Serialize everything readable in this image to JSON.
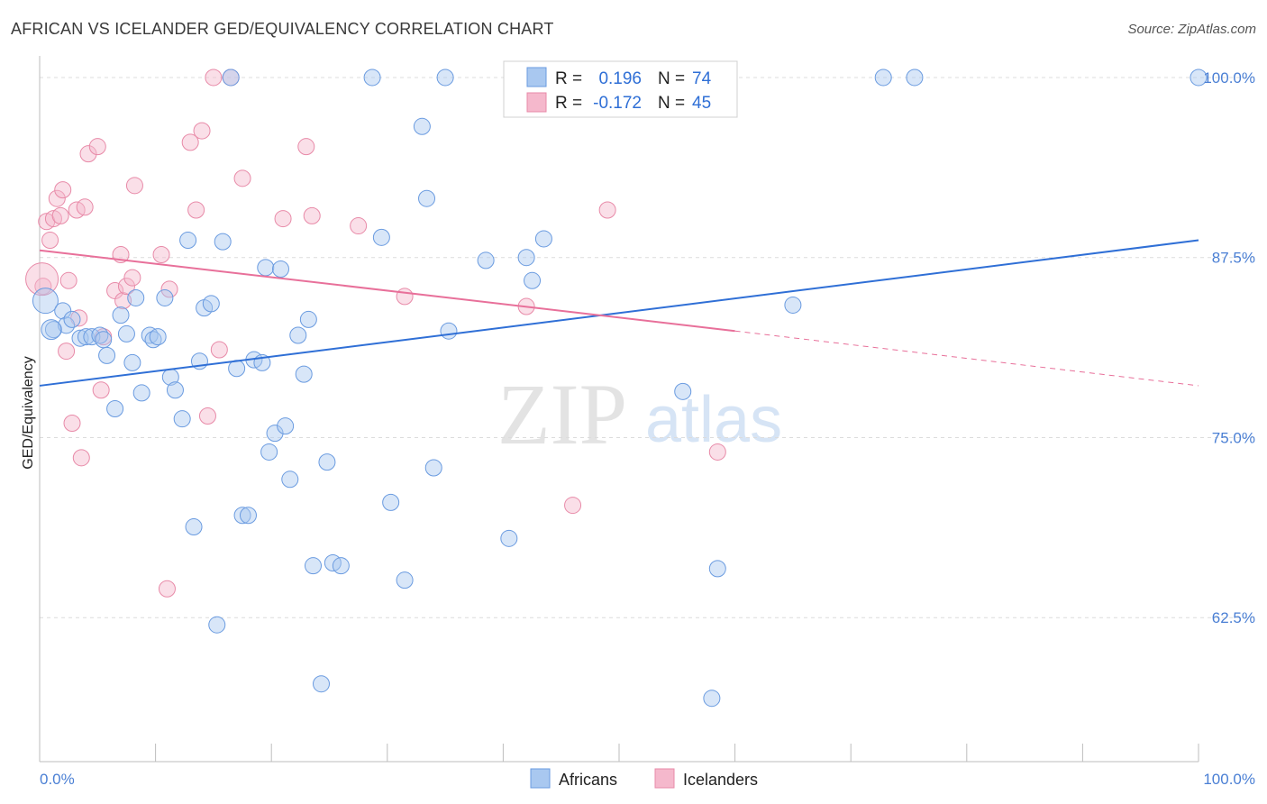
{
  "title": "AFRICAN VS ICELANDER GED/EQUIVALENCY CORRELATION CHART",
  "source": "Source: ZipAtlas.com",
  "colors": {
    "blue": "#3a7bd5",
    "blue_fill": "#a9c8f0",
    "pink": "#e8709a",
    "pink_fill": "#f5b8cc",
    "grid": "#d9d9d9",
    "tick_text": "#4a7fd4"
  },
  "legend_box": {
    "row1": {
      "r_label": "R =",
      "r_value": "0.196",
      "n_label": "N =",
      "n_value": "74"
    },
    "row2": {
      "r_label": "R =",
      "r_value": "-0.172",
      "n_label": "N =",
      "n_value": "45"
    }
  },
  "watermark": {
    "zip": "ZIP",
    "atlas": "atlas"
  },
  "chart_data": {
    "type": "scatter",
    "title": "AFRICAN VS ICELANDER GED/EQUIVALENCY CORRELATION CHART",
    "xlabel": "",
    "ylabel": "GED/Equivalency",
    "xlim": [
      0,
      100
    ],
    "ylim": [
      52.5,
      101.5
    ],
    "x_tick_labels": [
      "0.0%",
      "100.0%"
    ],
    "y_ticks": [
      62.5,
      75.0,
      87.5,
      100.0
    ],
    "y_tick_labels": [
      "62.5%",
      "75.0%",
      "87.5%",
      "100.0%"
    ],
    "grid": "horizontal dashed",
    "legend_position": "bottom-center",
    "series": [
      {
        "name": "Africans",
        "color": "#3a7bd5",
        "r": 0.196,
        "n": 74,
        "trend": {
          "x": [
            0,
            100
          ],
          "y": [
            78.6,
            88.7
          ],
          "dashed_from": null
        },
        "points": [
          [
            0.5,
            84.5
          ],
          [
            1.2,
            82.5
          ],
          [
            2.0,
            83.8
          ],
          [
            2.3,
            82.8
          ],
          [
            2.8,
            83.2
          ],
          [
            3.5,
            81.9
          ],
          [
            4.0,
            82.0
          ],
          [
            4.5,
            82.0
          ],
          [
            5.2,
            82.1
          ],
          [
            5.5,
            81.8
          ],
          [
            5.8,
            80.7
          ],
          [
            6.5,
            77.0
          ],
          [
            7.0,
            83.5
          ],
          [
            7.5,
            82.2
          ],
          [
            8.0,
            80.2
          ],
          [
            8.3,
            84.7
          ],
          [
            8.8,
            78.1
          ],
          [
            9.5,
            82.1
          ],
          [
            9.8,
            81.8
          ],
          [
            10.2,
            82.0
          ],
          [
            10.8,
            84.7
          ],
          [
            11.3,
            79.2
          ],
          [
            11.7,
            78.3
          ],
          [
            12.3,
            76.3
          ],
          [
            12.8,
            88.7
          ],
          [
            13.3,
            68.8
          ],
          [
            13.8,
            80.3
          ],
          [
            14.2,
            84.0
          ],
          [
            14.8,
            84.3
          ],
          [
            15.3,
            62.0
          ],
          [
            15.8,
            88.6
          ],
          [
            16.5,
            100.0
          ],
          [
            17.0,
            79.8
          ],
          [
            17.5,
            69.6
          ],
          [
            18.0,
            69.6
          ],
          [
            18.5,
            80.4
          ],
          [
            19.2,
            80.2
          ],
          [
            19.5,
            86.8
          ],
          [
            19.8,
            74.0
          ],
          [
            20.3,
            75.3
          ],
          [
            20.8,
            86.7
          ],
          [
            21.2,
            75.8
          ],
          [
            21.6,
            72.1
          ],
          [
            22.3,
            82.1
          ],
          [
            22.8,
            79.4
          ],
          [
            23.2,
            83.2
          ],
          [
            23.6,
            66.1
          ],
          [
            24.3,
            57.9
          ],
          [
            24.8,
            73.3
          ],
          [
            25.3,
            66.3
          ],
          [
            26.0,
            66.1
          ],
          [
            28.7,
            100.0
          ],
          [
            29.5,
            88.9
          ],
          [
            30.3,
            70.5
          ],
          [
            31.5,
            65.1
          ],
          [
            33.0,
            96.6
          ],
          [
            33.4,
            91.6
          ],
          [
            34.0,
            72.9
          ],
          [
            35.0,
            100.0
          ],
          [
            35.3,
            82.4
          ],
          [
            38.5,
            87.3
          ],
          [
            40.5,
            68.0
          ],
          [
            42.0,
            87.5
          ],
          [
            42.5,
            85.9
          ],
          [
            43.5,
            88.8
          ],
          [
            52.0,
            100.0
          ],
          [
            55.5,
            78.2
          ],
          [
            58.0,
            56.9
          ],
          [
            58.5,
            65.9
          ],
          [
            65.0,
            84.2
          ],
          [
            72.8,
            100.0
          ],
          [
            75.5,
            100.0
          ],
          [
            100.0,
            100.0
          ],
          [
            1.0,
            82.5
          ]
        ]
      },
      {
        "name": "Icelanders",
        "color": "#e8709a",
        "r": -0.172,
        "n": 45,
        "trend": {
          "x": [
            0,
            60
          ],
          "y": [
            88.0,
            82.4
          ],
          "dashed_x": [
            60,
            100
          ],
          "dashed_y": [
            82.4,
            78.6
          ]
        },
        "points": [
          [
            0.3,
            85.5
          ],
          [
            0.6,
            90.0
          ],
          [
            0.9,
            88.7
          ],
          [
            1.2,
            90.2
          ],
          [
            1.5,
            91.6
          ],
          [
            1.8,
            90.4
          ],
          [
            2.0,
            92.2
          ],
          [
            2.3,
            81.0
          ],
          [
            2.5,
            85.9
          ],
          [
            2.8,
            76.0
          ],
          [
            3.2,
            90.8
          ],
          [
            3.4,
            83.3
          ],
          [
            3.6,
            73.6
          ],
          [
            3.9,
            91.0
          ],
          [
            4.2,
            94.7
          ],
          [
            5.0,
            95.2
          ],
          [
            5.3,
            78.3
          ],
          [
            5.5,
            82.0
          ],
          [
            6.5,
            85.2
          ],
          [
            7.0,
            87.7
          ],
          [
            7.2,
            84.5
          ],
          [
            7.5,
            85.5
          ],
          [
            8.0,
            86.1
          ],
          [
            8.2,
            92.5
          ],
          [
            10.5,
            87.7
          ],
          [
            11.2,
            85.3
          ],
          [
            11.0,
            64.5
          ],
          [
            13.0,
            95.5
          ],
          [
            13.5,
            90.8
          ],
          [
            14.0,
            96.3
          ],
          [
            14.5,
            76.5
          ],
          [
            15.0,
            100.0
          ],
          [
            15.5,
            81.1
          ],
          [
            16.5,
            100.0
          ],
          [
            17.5,
            93.0
          ],
          [
            21.0,
            90.2
          ],
          [
            23.0,
            95.2
          ],
          [
            23.5,
            90.4
          ],
          [
            27.5,
            89.7
          ],
          [
            31.5,
            84.8
          ],
          [
            42.0,
            84.1
          ],
          [
            46.0,
            70.3
          ],
          [
            49.0,
            90.8
          ],
          [
            58.5,
            74.0
          ],
          [
            0.2,
            86.0
          ]
        ]
      }
    ]
  },
  "bottom_legend": [
    {
      "label": "Africans"
    },
    {
      "label": "Icelanders"
    }
  ]
}
